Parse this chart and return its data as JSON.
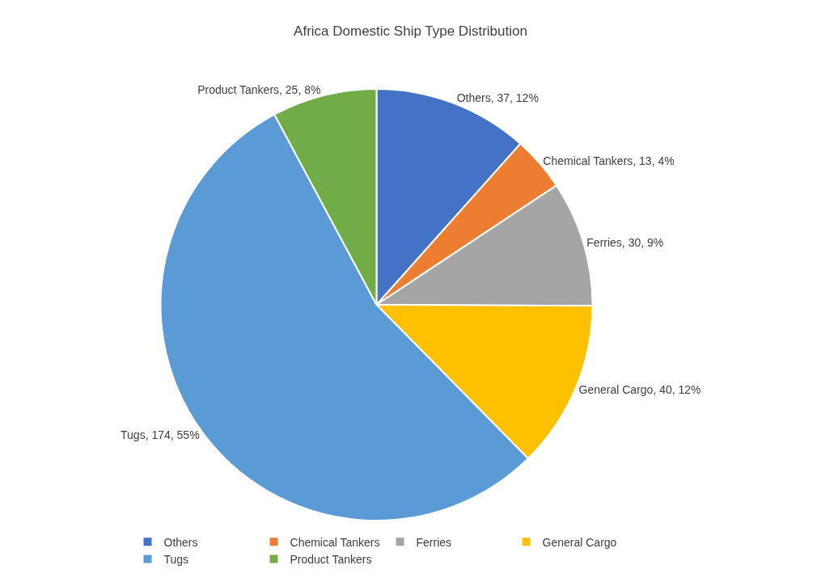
{
  "chart_data": {
    "type": "pie",
    "title": "Africa Domestic Ship Type Distribution",
    "categories": [
      "Others",
      "Chemical Tankers",
      "Ferries",
      "General Cargo",
      "Tugs",
      "Product Tankers"
    ],
    "values": [
      37,
      13,
      30,
      40,
      174,
      25
    ],
    "colors": [
      "#4472c4",
      "#ed7d31",
      "#a5a5a5",
      "#ffc000",
      "#5b9bd5",
      "#70ad47"
    ],
    "value_labels": [
      "Others, 37, 12%",
      "Chemical Tankers, 13, 4%",
      "Ferries, 30, 9%",
      "General Cargo, 40, 12%",
      "Tugs, 174, 55%",
      "Product Tankers, 25, 8%"
    ],
    "legend": "bottom"
  }
}
